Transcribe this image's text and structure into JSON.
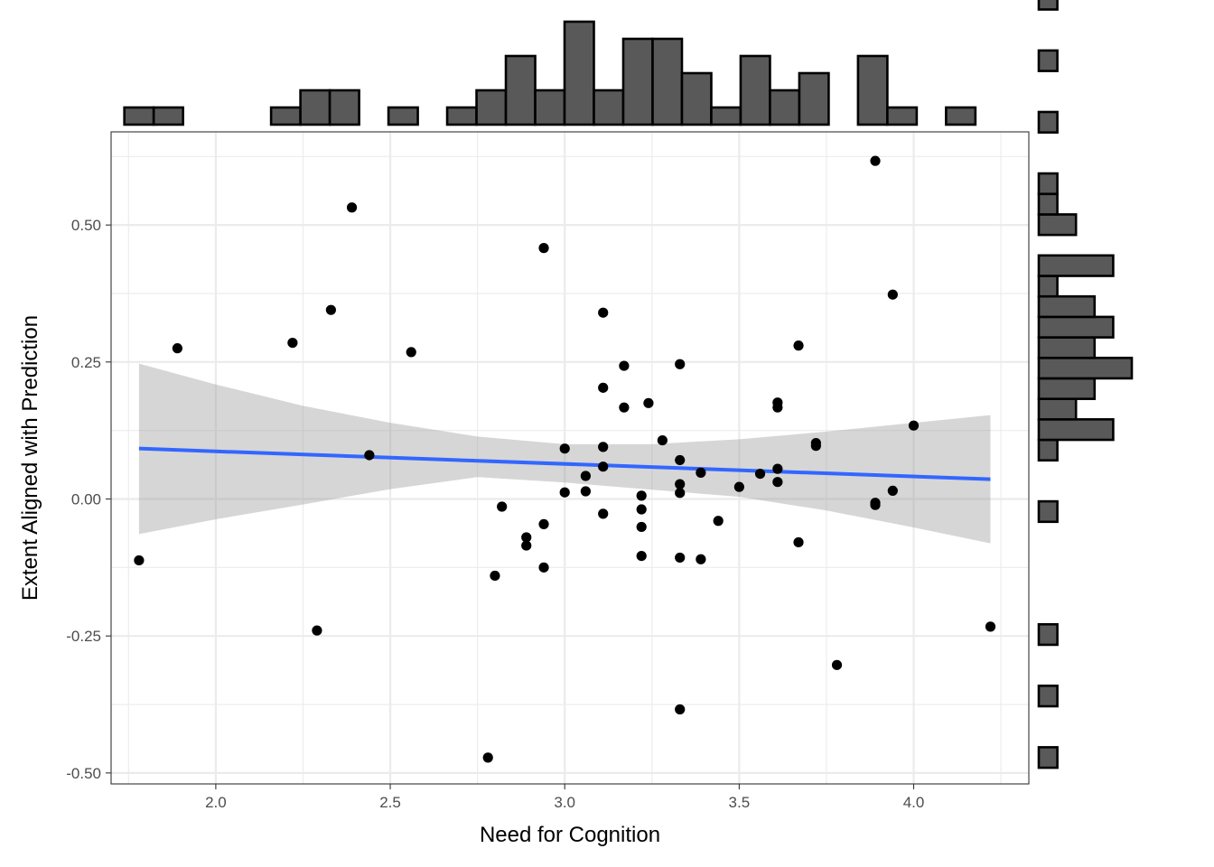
{
  "chart_data": {
    "type": "scatter",
    "xlabel": "Need for Cognition",
    "ylabel": "Extent Aligned with Prediction",
    "xlim": [
      1.7,
      4.33
    ],
    "ylim": [
      -0.52,
      0.67
    ],
    "x_ticks": [
      2.0,
      2.5,
      3.0,
      3.5,
      4.0
    ],
    "x_tick_labels": [
      "2.0",
      "2.5",
      "3.0",
      "3.5",
      "4.0"
    ],
    "y_ticks": [
      -0.5,
      -0.25,
      0.0,
      0.25,
      0.5
    ],
    "y_tick_labels": [
      "-0.50",
      "-0.25",
      "0.00",
      "0.25",
      "0.50"
    ],
    "grid": true,
    "colors": {
      "points": "#000000",
      "fit_line": "#3366ff",
      "confidence_band": "#999999",
      "histogram_fill": "#595959",
      "histogram_border": "#000000",
      "panel_border": "#333333"
    },
    "points": [
      {
        "x": 1.78,
        "y": -0.112
      },
      {
        "x": 1.89,
        "y": 0.275
      },
      {
        "x": 2.22,
        "y": 0.285
      },
      {
        "x": 2.29,
        "y": -0.24
      },
      {
        "x": 2.33,
        "y": 0.345
      },
      {
        "x": 2.39,
        "y": 0.532
      },
      {
        "x": 2.44,
        "y": 0.08
      },
      {
        "x": 2.56,
        "y": 0.268
      },
      {
        "x": 2.78,
        "y": -0.472
      },
      {
        "x": 2.8,
        "y": -0.14
      },
      {
        "x": 2.82,
        "y": -0.014
      },
      {
        "x": 2.89,
        "y": -0.07
      },
      {
        "x": 2.89,
        "y": -0.085
      },
      {
        "x": 2.94,
        "y": 0.458
      },
      {
        "x": 2.94,
        "y": -0.046
      },
      {
        "x": 2.94,
        "y": -0.125
      },
      {
        "x": 3.0,
        "y": 0.092
      },
      {
        "x": 3.0,
        "y": 0.012
      },
      {
        "x": 3.06,
        "y": 0.042
      },
      {
        "x": 3.06,
        "y": 0.014
      },
      {
        "x": 3.11,
        "y": 0.34
      },
      {
        "x": 3.11,
        "y": 0.203
      },
      {
        "x": 3.11,
        "y": 0.095
      },
      {
        "x": 3.11,
        "y": 0.059
      },
      {
        "x": 3.11,
        "y": -0.027
      },
      {
        "x": 3.17,
        "y": 0.243
      },
      {
        "x": 3.17,
        "y": 0.167
      },
      {
        "x": 3.22,
        "y": 0.006
      },
      {
        "x": 3.22,
        "y": -0.019
      },
      {
        "x": 3.22,
        "y": -0.051
      },
      {
        "x": 3.22,
        "y": -0.104
      },
      {
        "x": 3.24,
        "y": 0.175
      },
      {
        "x": 3.28,
        "y": 0.107
      },
      {
        "x": 3.33,
        "y": 0.246
      },
      {
        "x": 3.33,
        "y": 0.071
      },
      {
        "x": 3.33,
        "y": 0.027
      },
      {
        "x": 3.33,
        "y": 0.011
      },
      {
        "x": 3.33,
        "y": -0.107
      },
      {
        "x": 3.33,
        "y": -0.384
      },
      {
        "x": 3.39,
        "y": 0.048
      },
      {
        "x": 3.39,
        "y": -0.11
      },
      {
        "x": 3.44,
        "y": -0.04
      },
      {
        "x": 3.5,
        "y": 0.022
      },
      {
        "x": 3.56,
        "y": 0.046
      },
      {
        "x": 3.61,
        "y": 0.176
      },
      {
        "x": 3.61,
        "y": 0.167
      },
      {
        "x": 3.61,
        "y": 0.055
      },
      {
        "x": 3.61,
        "y": 0.031
      },
      {
        "x": 3.67,
        "y": 0.28
      },
      {
        "x": 3.67,
        "y": -0.079
      },
      {
        "x": 3.72,
        "y": 0.102
      },
      {
        "x": 3.72,
        "y": 0.097
      },
      {
        "x": 3.78,
        "y": -0.303
      },
      {
        "x": 3.89,
        "y": 0.617
      },
      {
        "x": 3.89,
        "y": -0.007
      },
      {
        "x": 3.89,
        "y": -0.011
      },
      {
        "x": 3.94,
        "y": 0.373
      },
      {
        "x": 3.94,
        "y": 0.015
      },
      {
        "x": 4.0,
        "y": 0.134
      },
      {
        "x": 4.22,
        "y": -0.233
      }
    ],
    "fit_line": {
      "method": "linear",
      "x": [
        1.78,
        4.22
      ],
      "y": [
        0.092,
        0.036
      ]
    },
    "confidence_band": {
      "x": [
        1.78,
        2.0,
        2.25,
        2.5,
        2.75,
        3.0,
        3.25,
        3.5,
        3.75,
        4.0,
        4.22
      ],
      "upper": [
        0.247,
        0.209,
        0.17,
        0.139,
        0.114,
        0.1,
        0.1,
        0.109,
        0.123,
        0.139,
        0.153
      ],
      "lower": [
        -0.064,
        -0.037,
        -0.01,
        0.018,
        0.04,
        0.03,
        0.017,
        0.004,
        -0.021,
        -0.052,
        -0.081
      ]
    },
    "top_histogram": {
      "axis": "x",
      "bin_width": 0.0841,
      "bin_start": 1.738,
      "counts": [
        1,
        1,
        0,
        0,
        0,
        1,
        2,
        2,
        0,
        1,
        0,
        1,
        2,
        4,
        2,
        6,
        2,
        5,
        5,
        3,
        1,
        4,
        2,
        3,
        0,
        4,
        1,
        0,
        1
      ]
    },
    "right_histogram": {
      "axis": "y",
      "bin_width": 0.0374,
      "bin_start": -0.4905,
      "counts": [
        1,
        0,
        0,
        1,
        0,
        0,
        1,
        0,
        0,
        0,
        0,
        0,
        1,
        0,
        0,
        1,
        4,
        2,
        3,
        5,
        3,
        4,
        3,
        1,
        4,
        0,
        2,
        1,
        1,
        0,
        0,
        1,
        0,
        0,
        1,
        0,
        0,
        1,
        0,
        0,
        1
      ]
    }
  }
}
